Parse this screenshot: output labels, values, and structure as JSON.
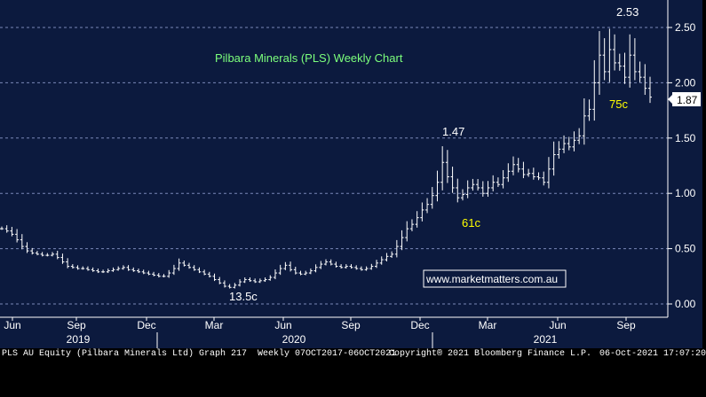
{
  "chart_data": {
    "type": "line",
    "title": "Pilbara Minerals (PLS) Weekly Chart",
    "watermark": "www.marketmatters.com.au",
    "ylim": [
      -0.05,
      2.7
    ],
    "y_ticks": [
      "0.00",
      "0.50",
      "1.00",
      "1.50",
      "2.00",
      "2.50"
    ],
    "last_price_label": "1.87",
    "x_month_labels": [
      "Jun",
      "Sep",
      "Dec",
      "Mar",
      "Jun",
      "Sep",
      "Dec",
      "Mar",
      "Jun",
      "Sep"
    ],
    "x_year_labels": [
      "2019",
      "2020",
      "2021"
    ],
    "annotations": [
      {
        "text": "2.53",
        "color": "#ffffff"
      },
      {
        "text": "1.47",
        "color": "#ffffff"
      },
      {
        "text": "13.5c",
        "color": "#ffffff"
      },
      {
        "text": "61c",
        "color": "#ffff00"
      },
      {
        "text": "75c",
        "color": "#ffff00"
      }
    ],
    "series": [
      {
        "values": [
          0.68,
          0.66,
          0.63,
          0.58,
          0.52,
          0.48,
          0.46,
          0.45,
          0.44,
          0.44,
          0.45,
          0.42,
          0.38,
          0.34,
          0.33,
          0.32,
          0.32,
          0.31,
          0.3,
          0.29,
          0.29,
          0.3,
          0.31,
          0.32,
          0.33,
          0.31,
          0.3,
          0.29,
          0.28,
          0.27,
          0.26,
          0.25,
          0.25,
          0.28,
          0.32,
          0.37,
          0.35,
          0.33,
          0.31,
          0.29,
          0.27,
          0.25,
          0.22,
          0.19,
          0.16,
          0.15,
          0.17,
          0.2,
          0.22,
          0.21,
          0.2,
          0.21,
          0.22,
          0.24,
          0.28,
          0.32,
          0.35,
          0.31,
          0.28,
          0.27,
          0.28,
          0.3,
          0.33,
          0.36,
          0.38,
          0.36,
          0.34,
          0.33,
          0.34,
          0.33,
          0.32,
          0.31,
          0.32,
          0.34,
          0.37,
          0.4,
          0.43,
          0.45,
          0.52,
          0.6,
          0.68,
          0.72,
          0.78,
          0.85,
          0.9,
          0.98,
          1.1,
          1.28,
          1.15,
          1.05,
          0.96,
          0.99,
          1.05,
          1.08,
          1.05,
          1.0,
          1.05,
          1.1,
          1.08,
          1.14,
          1.2,
          1.26,
          1.22,
          1.17,
          1.18,
          1.15,
          1.14,
          1.1,
          1.22,
          1.35,
          1.4,
          1.45,
          1.42,
          1.48,
          1.52,
          1.7,
          1.76,
          2.0,
          2.25,
          2.1,
          2.3,
          2.18,
          2.15,
          2.05,
          2.25,
          2.1,
          2.05,
          1.95,
          1.87
        ]
      }
    ]
  },
  "footer": {
    "left": "PLS AU Equity (Pilbara Minerals Ltd) Graph 217  Weekly 07OCT2017-06OCT2021",
    "mid": "Copyright® 2021 Bloomberg Finance L.P.",
    "right": "06-Oct-2021 17:07:20"
  }
}
